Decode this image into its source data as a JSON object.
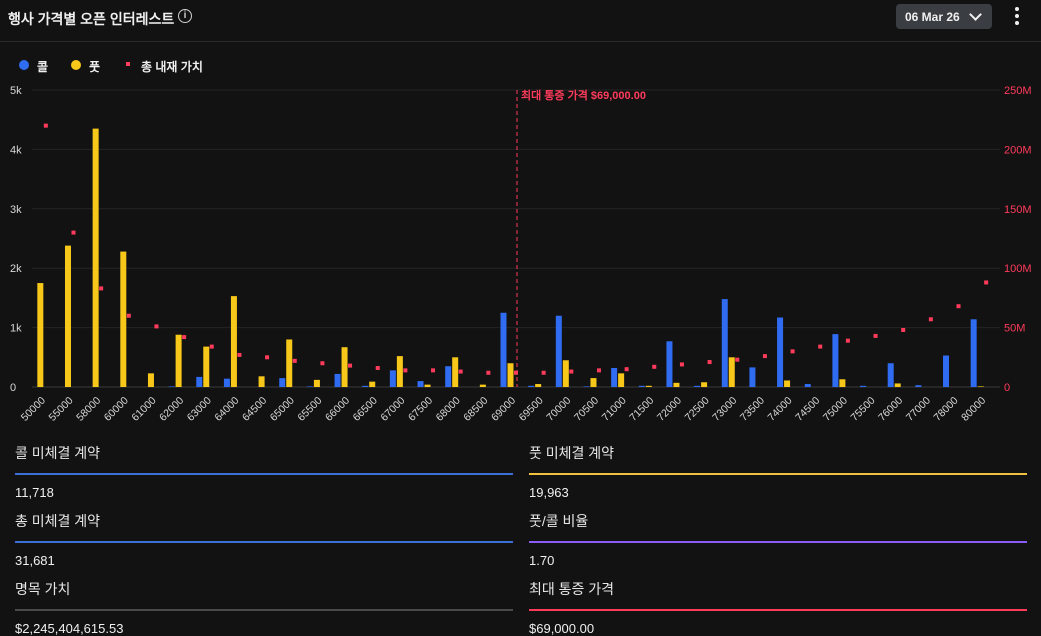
{
  "header": {
    "title": "행사 가격별 오픈 인터레스트",
    "info_icon": "info-icon",
    "date_selected": "06 Mar 26",
    "more_icon": "more-vertical-icon"
  },
  "legend": {
    "call": "콜",
    "put": "풋",
    "intrinsic": "총 내재 가치"
  },
  "colors": {
    "call": "#2f6cf2",
    "put": "#f7c81a",
    "intrinsic": "#ff3b5c",
    "maxpain": "#ff3b5c"
  },
  "chart_data": {
    "type": "bar",
    "categories": [
      "50000",
      "55000",
      "58000",
      "60000",
      "61000",
      "62000",
      "63000",
      "64000",
      "64500",
      "65000",
      "65500",
      "66000",
      "66500",
      "67000",
      "67500",
      "68000",
      "68500",
      "69000",
      "69500",
      "70000",
      "70500",
      "71000",
      "71500",
      "72000",
      "72500",
      "73000",
      "73500",
      "74000",
      "74500",
      "75000",
      "75500",
      "76000",
      "77000",
      "78000",
      "80000"
    ],
    "series": [
      {
        "name": "콜",
        "values": [
          0,
          0,
          0,
          0,
          0,
          10,
          170,
          140,
          0,
          150,
          10,
          220,
          20,
          280,
          100,
          350,
          0,
          1250,
          20,
          1200,
          10,
          320,
          20,
          770,
          20,
          1480,
          330,
          1170,
          50,
          890,
          20,
          400,
          30,
          530,
          1140
        ]
      },
      {
        "name": "풋",
        "values": [
          1750,
          2380,
          4350,
          2280,
          230,
          880,
          680,
          1530,
          180,
          800,
          120,
          670,
          90,
          520,
          40,
          500,
          40,
          400,
          50,
          450,
          150,
          230,
          20,
          70,
          80,
          500,
          0,
          110,
          0,
          130,
          0,
          60,
          0,
          0,
          10
        ]
      },
      {
        "name": "총 내재 가치",
        "axis": "right",
        "values": [
          220000000,
          130000000,
          83000000,
          60000000,
          51000000,
          42000000,
          34000000,
          27000000,
          25000000,
          22000000,
          20000000,
          18000000,
          16000000,
          14000000,
          14000000,
          13000000,
          12000000,
          12000000,
          12000000,
          13000000,
          14000000,
          15000000,
          17000000,
          19000000,
          21000000,
          23000000,
          26000000,
          30000000,
          34000000,
          39000000,
          43000000,
          48000000,
          57000000,
          68000000,
          88000000
        ]
      }
    ],
    "y_left": {
      "ylim": [
        0,
        5000
      ],
      "ticks": [
        "0",
        "1k",
        "2k",
        "3k",
        "4k",
        "5k"
      ]
    },
    "y_right": {
      "ylim": [
        0,
        250000000
      ],
      "ticks": [
        "0",
        "50M",
        "100M",
        "150M",
        "200M",
        "250M"
      ]
    },
    "max_pain": {
      "category": "69000",
      "label": "최대 통증 가격 $69,000.00"
    },
    "grid": true,
    "legend_position": "top-left"
  },
  "stats": [
    {
      "label": "콜 미체결 계약",
      "value": "11,718",
      "color": "#3b6fd8"
    },
    {
      "label": "풋 미체결 계약",
      "value": "19,963",
      "color": "#f0c040"
    },
    {
      "label": "총 미체결 계약",
      "value": "31,681",
      "color": "#3b6fd8"
    },
    {
      "label": "풋/콜 비율",
      "value": "1.70",
      "color": "#8b5cf6"
    },
    {
      "label": "명목 가치",
      "value": "$2,245,404,615.53",
      "color": "#4a4a4a"
    },
    {
      "label": "최대 통증 가격",
      "value": "$69,000.00",
      "color": "#ff3b5c"
    }
  ]
}
